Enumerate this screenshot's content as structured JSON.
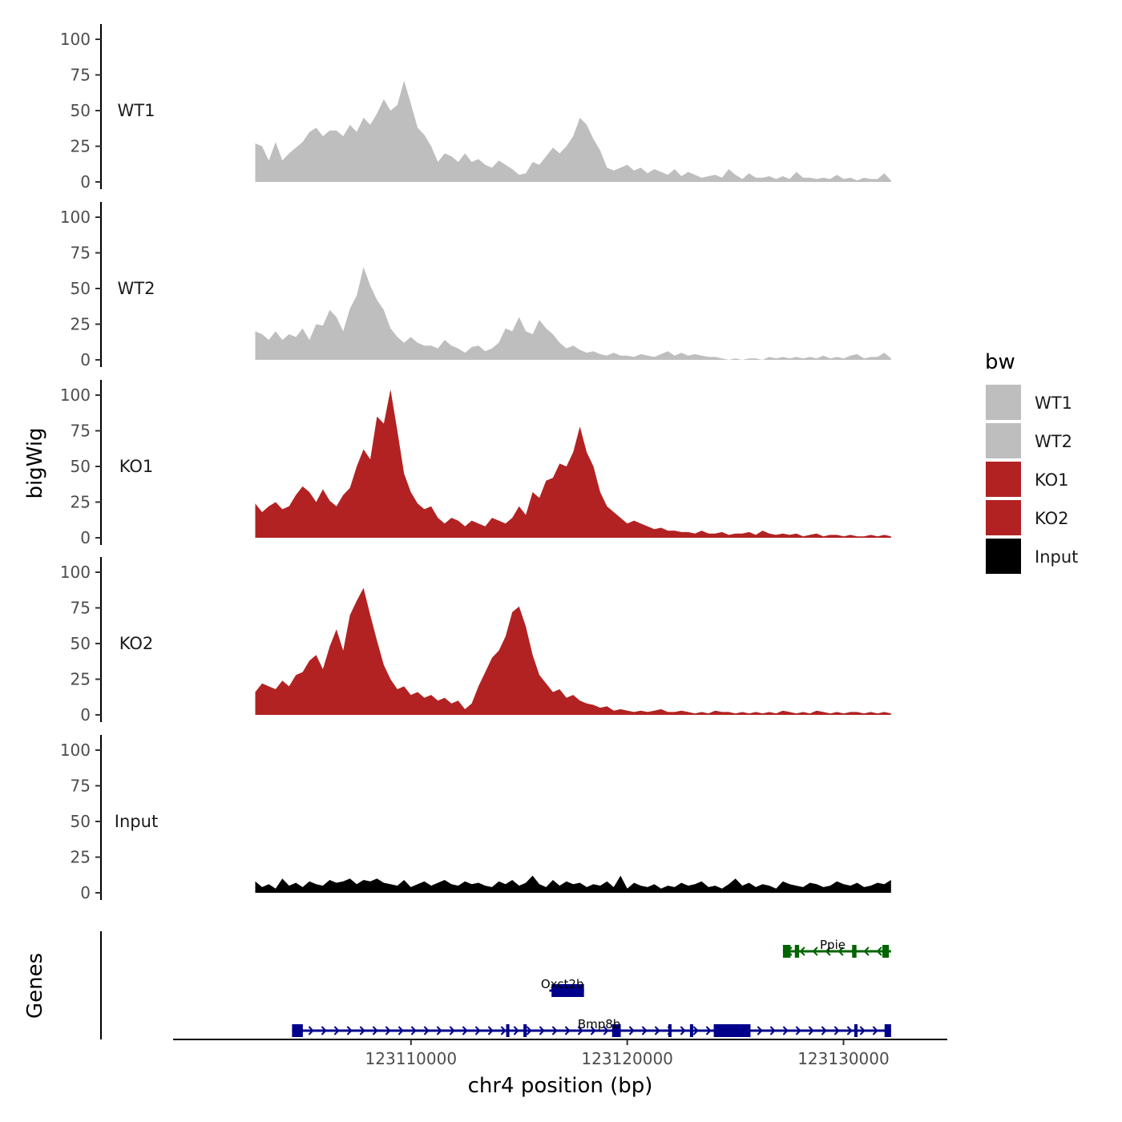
{
  "chart_data": {
    "type": "area",
    "title": "",
    "xlabel": "chr4 position (bp)",
    "ylabel": "bigWig",
    "gene_panel_label": "Genes",
    "xlim": [
      123099000,
      123134800
    ],
    "x_ticks": [
      123110000,
      123120000,
      123130000
    ],
    "x_tick_labels": [
      "123110000",
      "123120000",
      "123130000"
    ],
    "ylim": [
      0,
      105
    ],
    "y_ticks": [
      0,
      25,
      50,
      75,
      100
    ],
    "y_tick_labels": [
      "0",
      "25",
      "50",
      "75",
      "100"
    ],
    "legend": {
      "title": "bw",
      "placement": "right",
      "entries": [
        {
          "label": "WT1",
          "color": "#bebebe"
        },
        {
          "label": "WT2",
          "color": "#bebebe"
        },
        {
          "label": "KO1",
          "color": "#b22222"
        },
        {
          "label": "KO2",
          "color": "#b22222"
        },
        {
          "label": "Input",
          "color": "#000000"
        }
      ]
    },
    "x_start": 123102800,
    "x_end": 123132200,
    "series": [
      {
        "name": "WT1",
        "color": "#bebebe",
        "values": [
          27,
          25,
          15,
          28,
          15,
          20,
          24,
          28,
          35,
          38,
          32,
          36,
          36,
          32,
          40,
          35,
          45,
          40,
          48,
          58,
          50,
          54,
          71,
          55,
          38,
          33,
          25,
          14,
          20,
          18,
          14,
          20,
          14,
          16,
          12,
          10,
          15,
          12,
          9,
          5,
          6,
          14,
          12,
          18,
          24,
          20,
          25,
          32,
          45,
          40,
          30,
          22,
          10,
          8,
          10,
          12,
          8,
          10,
          6,
          9,
          7,
          5,
          9,
          4,
          7,
          5,
          3,
          4,
          5,
          3,
          9,
          5,
          2,
          6,
          3,
          3,
          4,
          2,
          4,
          2,
          7,
          3,
          3,
          2,
          3,
          2,
          5,
          2,
          3,
          1,
          3,
          2,
          2,
          6,
          1
        ]
      },
      {
        "name": "WT2",
        "color": "#bebebe",
        "values": [
          20,
          18,
          14,
          20,
          14,
          18,
          16,
          22,
          14,
          25,
          24,
          35,
          30,
          20,
          36,
          45,
          65,
          52,
          42,
          35,
          22,
          16,
          12,
          16,
          12,
          10,
          10,
          8,
          14,
          10,
          8,
          5,
          9,
          10,
          6,
          8,
          12,
          22,
          20,
          30,
          20,
          18,
          28,
          22,
          18,
          12,
          8,
          10,
          7,
          5,
          6,
          4,
          3,
          5,
          3,
          3,
          2,
          4,
          3,
          2,
          4,
          6,
          3,
          5,
          3,
          4,
          3,
          2,
          2,
          1,
          0,
          1,
          0,
          1,
          1,
          0,
          2,
          1,
          2,
          1,
          2,
          1,
          2,
          1,
          3,
          1,
          2,
          1,
          3,
          4,
          1,
          2,
          2,
          5,
          1
        ]
      },
      {
        "name": "KO1",
        "color": "#b22222",
        "values": [
          24,
          18,
          22,
          25,
          20,
          22,
          30,
          36,
          32,
          25,
          34,
          26,
          22,
          30,
          35,
          50,
          62,
          55,
          85,
          80,
          104,
          75,
          45,
          32,
          24,
          20,
          22,
          14,
          10,
          14,
          12,
          8,
          12,
          10,
          8,
          14,
          12,
          10,
          14,
          22,
          16,
          32,
          28,
          40,
          42,
          52,
          50,
          60,
          78,
          60,
          50,
          32,
          22,
          18,
          14,
          10,
          12,
          10,
          8,
          6,
          7,
          5,
          5,
          4,
          4,
          3,
          5,
          3,
          3,
          4,
          2,
          3,
          3,
          4,
          2,
          5,
          3,
          2,
          3,
          2,
          3,
          1,
          2,
          3,
          1,
          2,
          2,
          1,
          2,
          1,
          1,
          2,
          1,
          2,
          1
        ]
      },
      {
        "name": "KO2",
        "color": "#b22222",
        "values": [
          16,
          22,
          20,
          18,
          24,
          20,
          28,
          30,
          38,
          42,
          32,
          48,
          60,
          45,
          70,
          80,
          89,
          70,
          52,
          35,
          25,
          18,
          20,
          14,
          16,
          12,
          14,
          10,
          12,
          8,
          10,
          4,
          8,
          20,
          30,
          40,
          45,
          55,
          72,
          76,
          62,
          42,
          28,
          22,
          16,
          18,
          12,
          14,
          10,
          8,
          7,
          5,
          6,
          3,
          4,
          3,
          2,
          3,
          2,
          3,
          4,
          2,
          2,
          3,
          2,
          1,
          2,
          1,
          3,
          2,
          2,
          1,
          2,
          1,
          2,
          1,
          2,
          1,
          3,
          2,
          1,
          2,
          1,
          3,
          2,
          1,
          2,
          1,
          2,
          2,
          1,
          2,
          1,
          2,
          1
        ]
      },
      {
        "name": "Input",
        "color": "#000000",
        "values": [
          8,
          4,
          6,
          3,
          10,
          5,
          7,
          4,
          8,
          6,
          5,
          9,
          7,
          8,
          10,
          6,
          9,
          8,
          10,
          7,
          6,
          5,
          9,
          4,
          6,
          8,
          5,
          7,
          9,
          6,
          5,
          8,
          6,
          7,
          5,
          4,
          8,
          6,
          9,
          5,
          7,
          12,
          6,
          4,
          9,
          5,
          8,
          6,
          7,
          4,
          6,
          5,
          8,
          4,
          12,
          3,
          7,
          5,
          4,
          6,
          3,
          5,
          4,
          7,
          5,
          6,
          8,
          4,
          5,
          3,
          6,
          10,
          5,
          7,
          4,
          6,
          5,
          3,
          8,
          6,
          5,
          4,
          7,
          6,
          4,
          5,
          8,
          6,
          5,
          7,
          4,
          5,
          7,
          6,
          9
        ]
      }
    ],
    "genes": [
      {
        "name": "Ppie",
        "strand": "-",
        "color": "#006400",
        "row": 0,
        "start": 123127200,
        "end": 123132200,
        "label_pos": 123129500,
        "exons": [
          [
            123127200,
            123127550
          ],
          [
            123127750,
            123127950
          ],
          [
            123130400,
            123130600
          ],
          [
            123131800,
            123132100
          ]
        ]
      },
      {
        "name": "Oxct2b",
        "strand": "+",
        "color": "#00008b",
        "row": 1,
        "start": 123116400,
        "end": 123118000,
        "label_pos": 123117000,
        "exons": [
          [
            123116500,
            123118000
          ]
        ]
      },
      {
        "name": "Bmp8b",
        "strand": "+",
        "color": "#00008b",
        "row": 2,
        "start": 123104500,
        "end": 123132200,
        "label_pos": 123118700,
        "exons": [
          [
            123104500,
            123105000
          ],
          [
            123114400,
            123114550
          ],
          [
            123115200,
            123115350
          ],
          [
            123119300,
            123119700
          ],
          [
            123121900,
            123122050
          ],
          [
            123122900,
            123123050
          ],
          [
            123124000,
            123125700
          ],
          [
            123130500,
            123130650
          ],
          [
            123131900,
            123132200
          ]
        ]
      }
    ]
  }
}
